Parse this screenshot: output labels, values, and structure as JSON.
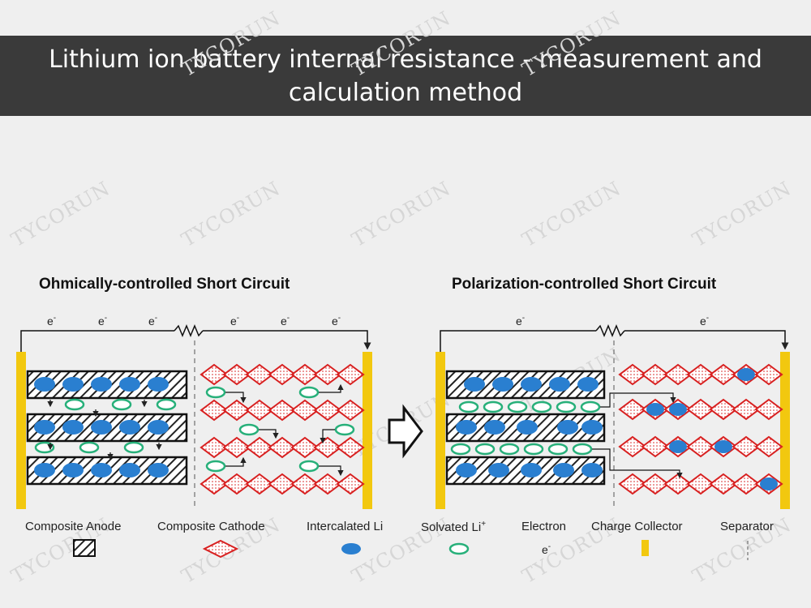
{
  "banner": {
    "line1": "Lithium ion battery internal resistance - measurement and",
    "line2": "calculation method"
  },
  "panels": {
    "left_title": "Ohmically-controlled Short Circuit",
    "right_title": "Polarization-controlled Short Circuit"
  },
  "electron_symbol": "e",
  "electron_superscript": "-",
  "legend": {
    "composite_anode": "Composite Anode",
    "composite_cathode": "Composite Cathode",
    "intercalated_li": "Intercalated Li",
    "solvated_li": "Solvated Li",
    "solvated_li_sup": "+",
    "electron": "Electron",
    "charge_collector": "Charge Collector",
    "separator": "Separator"
  },
  "watermark": "TYCORUN",
  "colors": {
    "collector": "#f2c80f",
    "cathode_red": "#d82020",
    "intercalated_blue": "#2a7fd0",
    "solvated_green": "#27b07a",
    "banner_bg": "#3a3a3a"
  }
}
